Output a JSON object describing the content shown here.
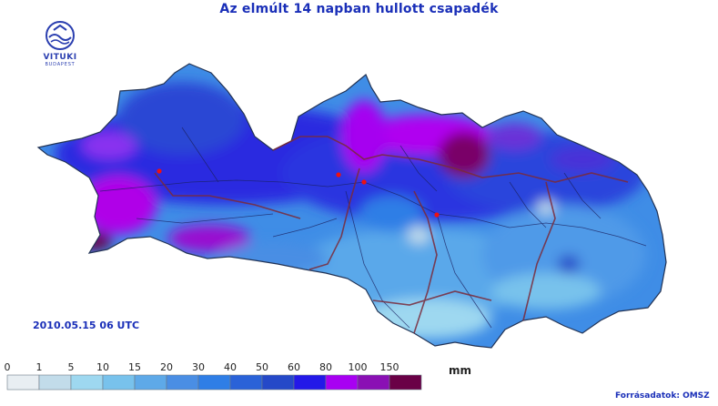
{
  "title": "Az elmúlt 14 napban hullott csapadék",
  "logo": {
    "name": "VITUKI",
    "city": "BUDAPEST",
    "icon": "vituki-logo-icon"
  },
  "date": "2010.05.15 06 UTC",
  "legend": {
    "unit": "mm",
    "labels": [
      "0",
      "1",
      "5",
      "10",
      "15",
      "20",
      "30",
      "40",
      "50",
      "60",
      "80",
      "100",
      "150"
    ],
    "colors": [
      "#e8eef2",
      "#c2dcea",
      "#9ed8f0",
      "#78c2ec",
      "#5ea9e8",
      "#4a8ee4",
      "#2f7ee6",
      "#2a62d8",
      "#2549c8",
      "#2319e8",
      "#a800f2",
      "#8a10b4",
      "#6a0046"
    ]
  },
  "source": "Forrásadatok: OMSZ",
  "map": {
    "region": "precipitation-map-carpathian-basin",
    "markers": [
      "station-marker",
      "station-marker",
      "station-marker",
      "station-marker"
    ]
  }
}
